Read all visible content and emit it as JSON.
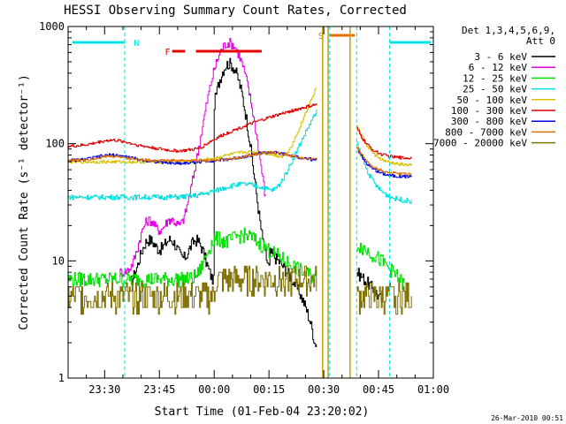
{
  "chart_data": {
    "type": "line",
    "title": "HESSI Observing Summary Count Rates, Corrected",
    "xlabel": "Start Time (01-Feb-04 23:20:02)",
    "ylabel": "Corrected Count Rate (s⁻¹ detector⁻¹)",
    "yscale": "log",
    "ylim": [
      1,
      1000
    ],
    "xlim_minutes": [
      0,
      100
    ],
    "x_tick_labels": [
      "23:30",
      "23:45",
      "00:00",
      "00:15",
      "00:30",
      "00:45",
      "01:00"
    ],
    "y_tick_labels": [
      "1",
      "10",
      "100",
      "1000"
    ],
    "legend_title_line1": "Det 1,3,4,5,6,9,",
    "legend_title_line2": "Att 0",
    "footer_date": "26-Mar-2010 00:51",
    "flags": [
      {
        "label": "N",
        "color": "#00e5e5"
      },
      {
        "label": "F",
        "color": "#e00000"
      },
      {
        "label": "S",
        "color": "#e07000"
      }
    ],
    "series": [
      {
        "name": "3 - 6 keV",
        "color": "#000000"
      },
      {
        "name": "6 - 12 keV",
        "color": "#e000e0"
      },
      {
        "name": "12 - 25 keV",
        "color": "#00e000"
      },
      {
        "name": "25 - 50 keV",
        "color": "#00e0e0"
      },
      {
        "name": "50 - 100 keV",
        "color": "#d8c000"
      },
      {
        "name": "100 - 300 keV",
        "color": "#e00000"
      },
      {
        "name": "300 - 800 keV",
        "color": "#0000e0"
      },
      {
        "name": "800 - 7000 keV",
        "color": "#e07000"
      },
      {
        "name": "7000 - 20000 keV",
        "color": "#807000"
      }
    ]
  }
}
